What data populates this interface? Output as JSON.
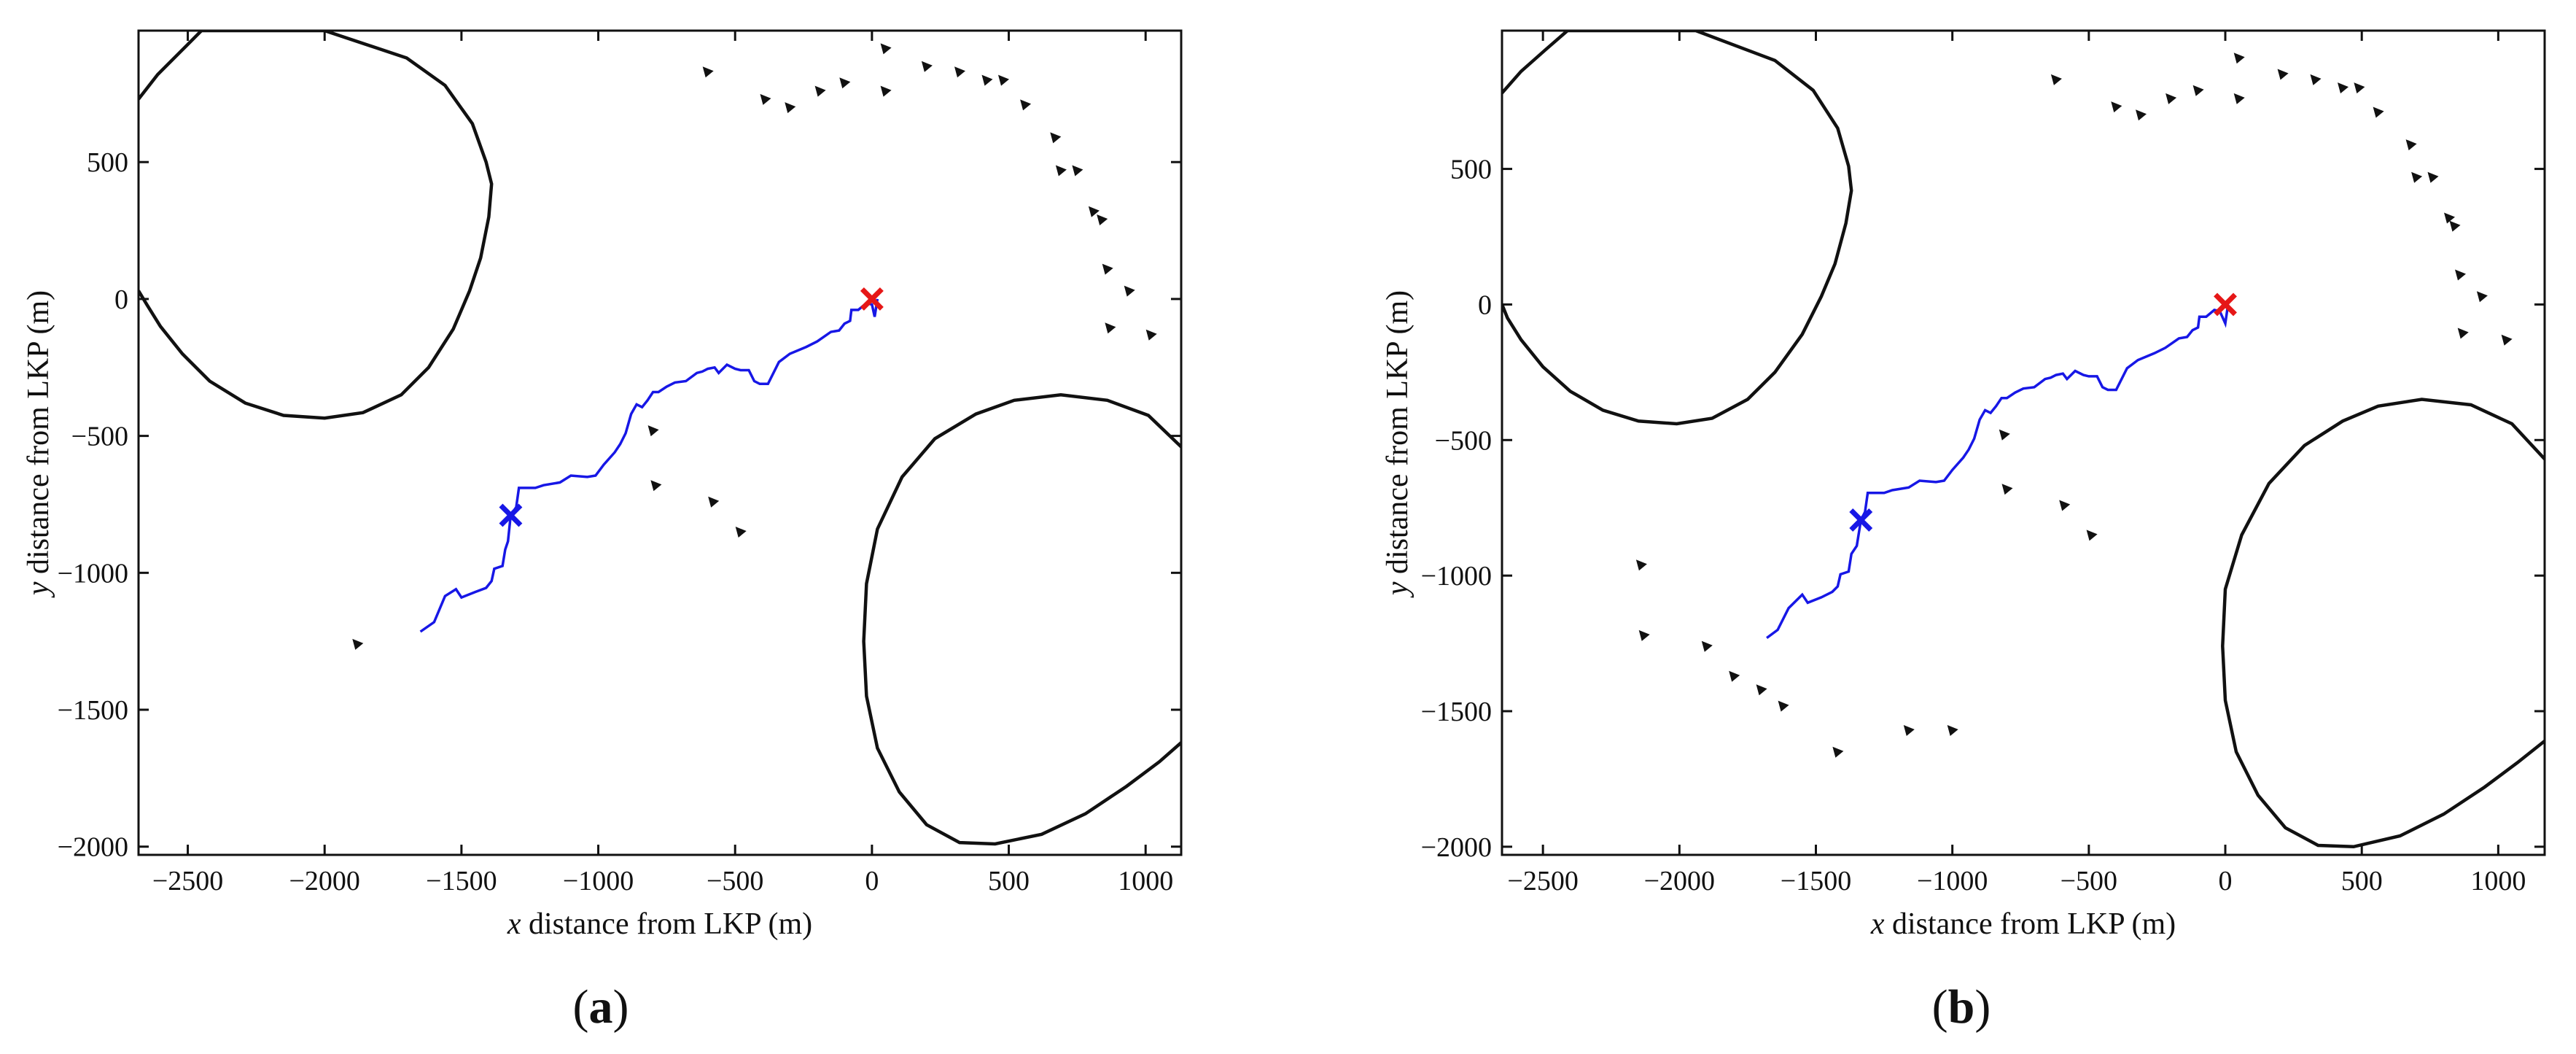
{
  "figure": {
    "panels": [
      {
        "label": "a",
        "key": "a"
      },
      {
        "label": "b",
        "key": "b"
      }
    ]
  },
  "colors": {
    "track": "#1717e6",
    "lkp": "#e61717",
    "contour": "#111111",
    "markers": "#111111"
  },
  "chart_data": [
    {
      "type": "line",
      "panel": "(a)",
      "title": "",
      "xlabel_italic": "x",
      "xlabel_rest": " distance from LKP (m)",
      "ylabel_italic": "y",
      "ylabel_rest": " distance from LKP (m)",
      "xlim": [
        -2680,
        1130
      ],
      "ylim": [
        -2030,
        980
      ],
      "xticks": [
        -2500,
        -2000,
        -1500,
        -1000,
        -500,
        0,
        500,
        1000
      ],
      "yticks": [
        -2000,
        -1500,
        -1000,
        -500,
        0,
        500
      ],
      "lkp": [
        0,
        0
      ],
      "current_position": [
        -1320,
        -790
      ],
      "track": [
        [
          -1650,
          -1215
        ],
        [
          -1600,
          -1180
        ],
        [
          -1560,
          -1085
        ],
        [
          -1520,
          -1060
        ],
        [
          -1500,
          -1090
        ],
        [
          -1450,
          -1070
        ],
        [
          -1410,
          -1055
        ],
        [
          -1390,
          -1030
        ],
        [
          -1380,
          -985
        ],
        [
          -1350,
          -975
        ],
        [
          -1340,
          -915
        ],
        [
          -1330,
          -885
        ],
        [
          -1320,
          -790
        ],
        [
          -1300,
          -760
        ],
        [
          -1290,
          -690
        ],
        [
          -1260,
          -690
        ],
        [
          -1230,
          -690
        ],
        [
          -1200,
          -680
        ],
        [
          -1140,
          -670
        ],
        [
          -1100,
          -645
        ],
        [
          -1040,
          -650
        ],
        [
          -1010,
          -645
        ],
        [
          -980,
          -605
        ],
        [
          -940,
          -560
        ],
        [
          -920,
          -530
        ],
        [
          -900,
          -490
        ],
        [
          -880,
          -420
        ],
        [
          -860,
          -385
        ],
        [
          -840,
          -395
        ],
        [
          -820,
          -370
        ],
        [
          -800,
          -340
        ],
        [
          -780,
          -340
        ],
        [
          -750,
          -320
        ],
        [
          -720,
          -305
        ],
        [
          -680,
          -300
        ],
        [
          -640,
          -270
        ],
        [
          -620,
          -265
        ],
        [
          -600,
          -255
        ],
        [
          -575,
          -250
        ],
        [
          -560,
          -270
        ],
        [
          -530,
          -240
        ],
        [
          -500,
          -255
        ],
        [
          -480,
          -260
        ],
        [
          -450,
          -260
        ],
        [
          -430,
          -300
        ],
        [
          -410,
          -310
        ],
        [
          -380,
          -310
        ],
        [
          -340,
          -230
        ],
        [
          -300,
          -200
        ],
        [
          -240,
          -175
        ],
        [
          -200,
          -155
        ],
        [
          -150,
          -120
        ],
        [
          -120,
          -115
        ],
        [
          -100,
          -90
        ],
        [
          -80,
          -80
        ],
        [
          -75,
          -40
        ],
        [
          -50,
          -40
        ],
        [
          -20,
          -15
        ],
        [
          0,
          -20
        ],
        [
          10,
          -65
        ],
        [
          20,
          0
        ]
      ],
      "contours": [
        [
          [
            -2680,
            730
          ],
          [
            -2610,
            820
          ],
          [
            -2520,
            910
          ],
          [
            -2450,
            980
          ],
          [
            -2000,
            980
          ],
          [
            -1700,
            880
          ],
          [
            -1560,
            780
          ],
          [
            -1460,
            640
          ],
          [
            -1410,
            500
          ],
          [
            -1390,
            420
          ],
          [
            -1400,
            300
          ],
          [
            -1430,
            150
          ],
          [
            -1470,
            30
          ],
          [
            -1530,
            -110
          ],
          [
            -1620,
            -250
          ],
          [
            -1720,
            -350
          ],
          [
            -1860,
            -415
          ],
          [
            -2000,
            -435
          ],
          [
            -2150,
            -425
          ],
          [
            -2290,
            -380
          ],
          [
            -2420,
            -300
          ],
          [
            -2520,
            -200
          ],
          [
            -2600,
            -100
          ],
          [
            -2650,
            -20
          ],
          [
            -2680,
            30
          ]
        ],
        [
          [
            1130,
            -540
          ],
          [
            1010,
            -425
          ],
          [
            860,
            -370
          ],
          [
            690,
            -350
          ],
          [
            520,
            -370
          ],
          [
            380,
            -420
          ],
          [
            230,
            -510
          ],
          [
            110,
            -650
          ],
          [
            20,
            -840
          ],
          [
            -20,
            -1040
          ],
          [
            -30,
            -1250
          ],
          [
            -20,
            -1450
          ],
          [
            20,
            -1640
          ],
          [
            100,
            -1800
          ],
          [
            200,
            -1920
          ],
          [
            320,
            -1985
          ],
          [
            450,
            -1990
          ],
          [
            620,
            -1955
          ],
          [
            780,
            -1880
          ],
          [
            930,
            -1780
          ],
          [
            1050,
            -1690
          ],
          [
            1130,
            -1620
          ]
        ]
      ],
      "markers": [
        [
          -600,
          830
        ],
        [
          -390,
          730
        ],
        [
          -300,
          700
        ],
        [
          -190,
          760
        ],
        [
          -100,
          790
        ],
        [
          50,
          915
        ],
        [
          50,
          760
        ],
        [
          200,
          850
        ],
        [
          320,
          830
        ],
        [
          420,
          800
        ],
        [
          480,
          800
        ],
        [
          560,
          710
        ],
        [
          670,
          590
        ],
        [
          690,
          470
        ],
        [
          750,
          470
        ],
        [
          810,
          320
        ],
        [
          840,
          290
        ],
        [
          860,
          110
        ],
        [
          940,
          30
        ],
        [
          870,
          -105
        ],
        [
          1020,
          -130
        ],
        [
          -800,
          -480
        ],
        [
          -790,
          -680
        ],
        [
          -580,
          -740
        ],
        [
          -480,
          -850
        ],
        [
          -1880,
          -1260
        ]
      ]
    },
    {
      "type": "line",
      "panel": "(b)",
      "title": "",
      "xlabel_italic": "x",
      "xlabel_rest": " distance from LKP (m)",
      "ylabel_italic": "y",
      "ylabel_rest": " distance from LKP (m)",
      "xlim": [
        -2650,
        1170
      ],
      "ylim": [
        -2030,
        1010
      ],
      "xticks": [
        -2500,
        -2000,
        -1500,
        -1000,
        -500,
        0,
        500,
        1000
      ],
      "yticks": [
        -2000,
        -1500,
        -1000,
        -500,
        0,
        500
      ],
      "lkp": [
        0,
        0
      ],
      "current_position": [
        -1335,
        -795
      ],
      "track": [
        [
          -1680,
          -1230
        ],
        [
          -1640,
          -1200
        ],
        [
          -1600,
          -1120
        ],
        [
          -1550,
          -1070
        ],
        [
          -1530,
          -1100
        ],
        [
          -1480,
          -1080
        ],
        [
          -1440,
          -1060
        ],
        [
          -1420,
          -1040
        ],
        [
          -1410,
          -995
        ],
        [
          -1380,
          -985
        ],
        [
          -1370,
          -920
        ],
        [
          -1350,
          -890
        ],
        [
          -1335,
          -795
        ],
        [
          -1320,
          -765
        ],
        [
          -1310,
          -695
        ],
        [
          -1280,
          -695
        ],
        [
          -1250,
          -695
        ],
        [
          -1220,
          -685
        ],
        [
          -1160,
          -675
        ],
        [
          -1120,
          -650
        ],
        [
          -1060,
          -655
        ],
        [
          -1030,
          -650
        ],
        [
          -1000,
          -610
        ],
        [
          -960,
          -565
        ],
        [
          -940,
          -535
        ],
        [
          -920,
          -495
        ],
        [
          -900,
          -425
        ],
        [
          -880,
          -390
        ],
        [
          -860,
          -400
        ],
        [
          -840,
          -375
        ],
        [
          -820,
          -345
        ],
        [
          -800,
          -345
        ],
        [
          -770,
          -325
        ],
        [
          -740,
          -310
        ],
        [
          -700,
          -305
        ],
        [
          -660,
          -275
        ],
        [
          -640,
          -270
        ],
        [
          -620,
          -260
        ],
        [
          -595,
          -255
        ],
        [
          -580,
          -275
        ],
        [
          -550,
          -245
        ],
        [
          -520,
          -260
        ],
        [
          -500,
          -265
        ],
        [
          -470,
          -265
        ],
        [
          -450,
          -305
        ],
        [
          -430,
          -315
        ],
        [
          -400,
          -315
        ],
        [
          -360,
          -235
        ],
        [
          -320,
          -205
        ],
        [
          -260,
          -180
        ],
        [
          -220,
          -160
        ],
        [
          -170,
          -125
        ],
        [
          -140,
          -120
        ],
        [
          -120,
          -95
        ],
        [
          -100,
          -85
        ],
        [
          -95,
          -45
        ],
        [
          -70,
          -45
        ],
        [
          -40,
          -20
        ],
        [
          -20,
          -25
        ],
        [
          0,
          -70
        ],
        [
          10,
          0
        ]
      ],
      "contours": [
        [
          [
            -2650,
            780
          ],
          [
            -2580,
            860
          ],
          [
            -2490,
            940
          ],
          [
            -2410,
            1010
          ],
          [
            -1940,
            1010
          ],
          [
            -1650,
            900
          ],
          [
            -1510,
            790
          ],
          [
            -1420,
            650
          ],
          [
            -1380,
            510
          ],
          [
            -1370,
            420
          ],
          [
            -1390,
            300
          ],
          [
            -1430,
            150
          ],
          [
            -1480,
            30
          ],
          [
            -1550,
            -110
          ],
          [
            -1650,
            -250
          ],
          [
            -1750,
            -350
          ],
          [
            -1880,
            -420
          ],
          [
            -2010,
            -440
          ],
          [
            -2150,
            -430
          ],
          [
            -2280,
            -390
          ],
          [
            -2400,
            -320
          ],
          [
            -2500,
            -230
          ],
          [
            -2580,
            -130
          ],
          [
            -2630,
            -50
          ],
          [
            -2650,
            0
          ]
        ],
        [
          [
            1170,
            -570
          ],
          [
            1050,
            -440
          ],
          [
            900,
            -370
          ],
          [
            720,
            -350
          ],
          [
            560,
            -375
          ],
          [
            430,
            -430
          ],
          [
            290,
            -520
          ],
          [
            160,
            -660
          ],
          [
            60,
            -850
          ],
          [
            0,
            -1050
          ],
          [
            -10,
            -1260
          ],
          [
            0,
            -1460
          ],
          [
            40,
            -1650
          ],
          [
            120,
            -1810
          ],
          [
            220,
            -1930
          ],
          [
            340,
            -1995
          ],
          [
            470,
            -2000
          ],
          [
            640,
            -1960
          ],
          [
            800,
            -1880
          ],
          [
            950,
            -1780
          ],
          [
            1070,
            -1690
          ],
          [
            1170,
            -1610
          ]
        ]
      ],
      "markers": [
        [
          -620,
          830
        ],
        [
          -400,
          730
        ],
        [
          -310,
          700
        ],
        [
          -200,
          760
        ],
        [
          -100,
          790
        ],
        [
          50,
          910
        ],
        [
          50,
          760
        ],
        [
          210,
          850
        ],
        [
          330,
          830
        ],
        [
          430,
          800
        ],
        [
          490,
          800
        ],
        [
          560,
          710
        ],
        [
          680,
          590
        ],
        [
          700,
          470
        ],
        [
          760,
          470
        ],
        [
          820,
          320
        ],
        [
          840,
          290
        ],
        [
          860,
          110
        ],
        [
          940,
          30
        ],
        [
          870,
          -105
        ],
        [
          1030,
          -130
        ],
        [
          -810,
          -480
        ],
        [
          -800,
          -680
        ],
        [
          -590,
          -740
        ],
        [
          -490,
          -850
        ],
        [
          -2140,
          -960
        ],
        [
          -2130,
          -1220
        ],
        [
          -1900,
          -1260
        ],
        [
          -1800,
          -1370
        ],
        [
          -1700,
          -1420
        ],
        [
          -1620,
          -1480
        ],
        [
          -1420,
          -1650
        ],
        [
          -1160,
          -1570
        ],
        [
          -1000,
          -1570
        ]
      ]
    }
  ]
}
